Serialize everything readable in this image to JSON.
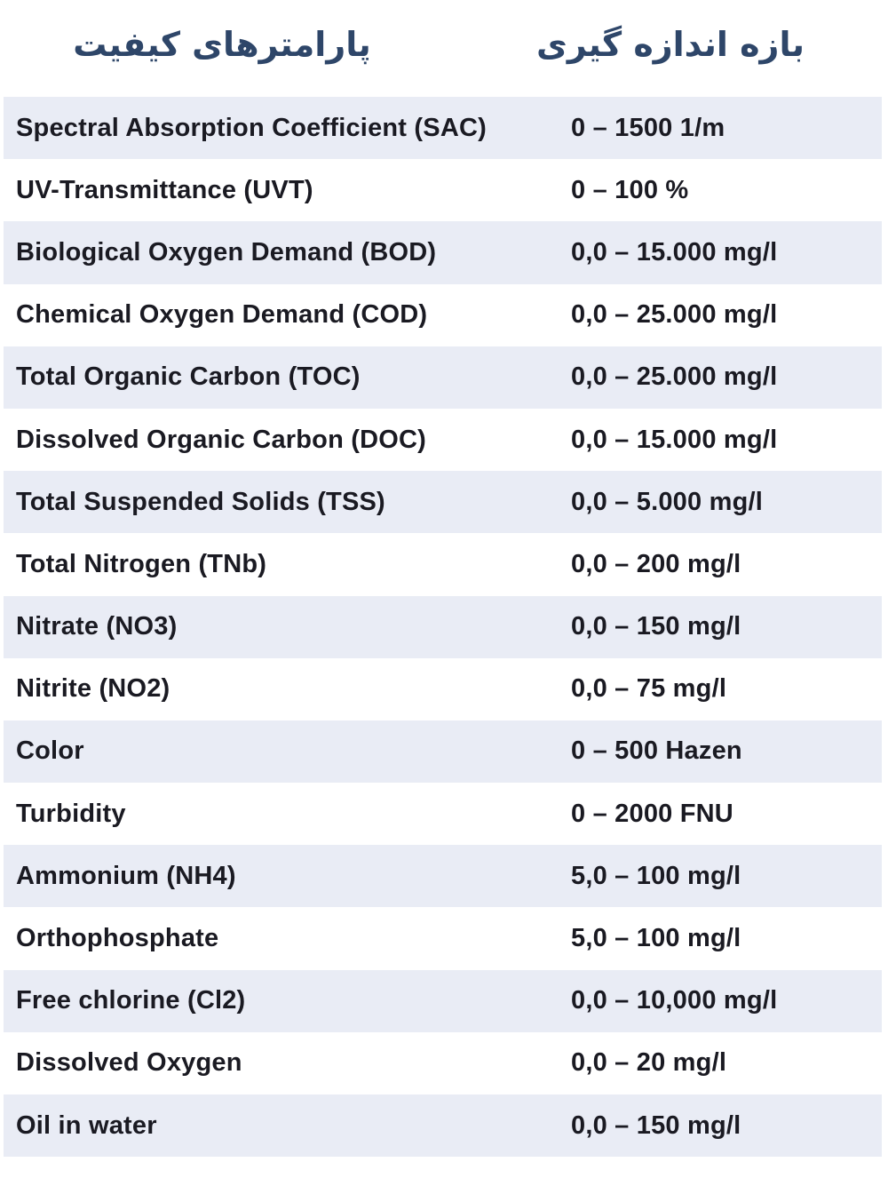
{
  "header": {
    "parameters_label": "پارامترهای کیفیت",
    "range_label": "بازه اندازه گیری"
  },
  "colors": {
    "header_text": "#2e4669",
    "row_stripe": "#e9ecf5",
    "body_text": "#1a1a22",
    "background": "#ffffff"
  },
  "table": {
    "rows": [
      {
        "param": "Spectral Absorption Coefficient (SAC)",
        "range": "0 – 1500 1/m"
      },
      {
        "param": "UV-Transmittance (UVT)",
        "range": "0 – 100 %"
      },
      {
        "param": "Biological Oxygen Demand (BOD)",
        "range": "0,0 – 15.000 mg/l"
      },
      {
        "param": "Chemical Oxygen Demand (COD)",
        "range": "0,0 – 25.000 mg/l"
      },
      {
        "param": "Total Organic Carbon (TOC)",
        "range": "0,0 – 25.000 mg/l"
      },
      {
        "param": "Dissolved Organic Carbon (DOC)",
        "range": "0,0 – 15.000 mg/l"
      },
      {
        "param": "Total Suspended Solids (TSS)",
        "range": "0,0 – 5.000 mg/l"
      },
      {
        "param": "Total Nitrogen (TNb)",
        "range": "0,0 – 200 mg/l"
      },
      {
        "param": "Nitrate (NO3)",
        "range": "0,0 – 150 mg/l"
      },
      {
        "param": "Nitrite (NO2)",
        "range": "0,0 – 75 mg/l"
      },
      {
        "param": "Color",
        "range": "0 – 500 Hazen"
      },
      {
        "param": "Turbidity",
        "range": "0 – 2000 FNU"
      },
      {
        "param": "Ammonium (NH4)",
        "range": "5,0 – 100 mg/l"
      },
      {
        "param": "Orthophosphate",
        "range": "5,0 – 100 mg/l"
      },
      {
        "param": "Free chlorine (Cl2)",
        "range": "0,0 – 10,000 mg/l"
      },
      {
        "param": "Dissolved Oxygen",
        "range": "0,0 – 20 mg/l"
      },
      {
        "param": "Oil in water",
        "range": "0,0 – 150 mg/l"
      }
    ]
  }
}
